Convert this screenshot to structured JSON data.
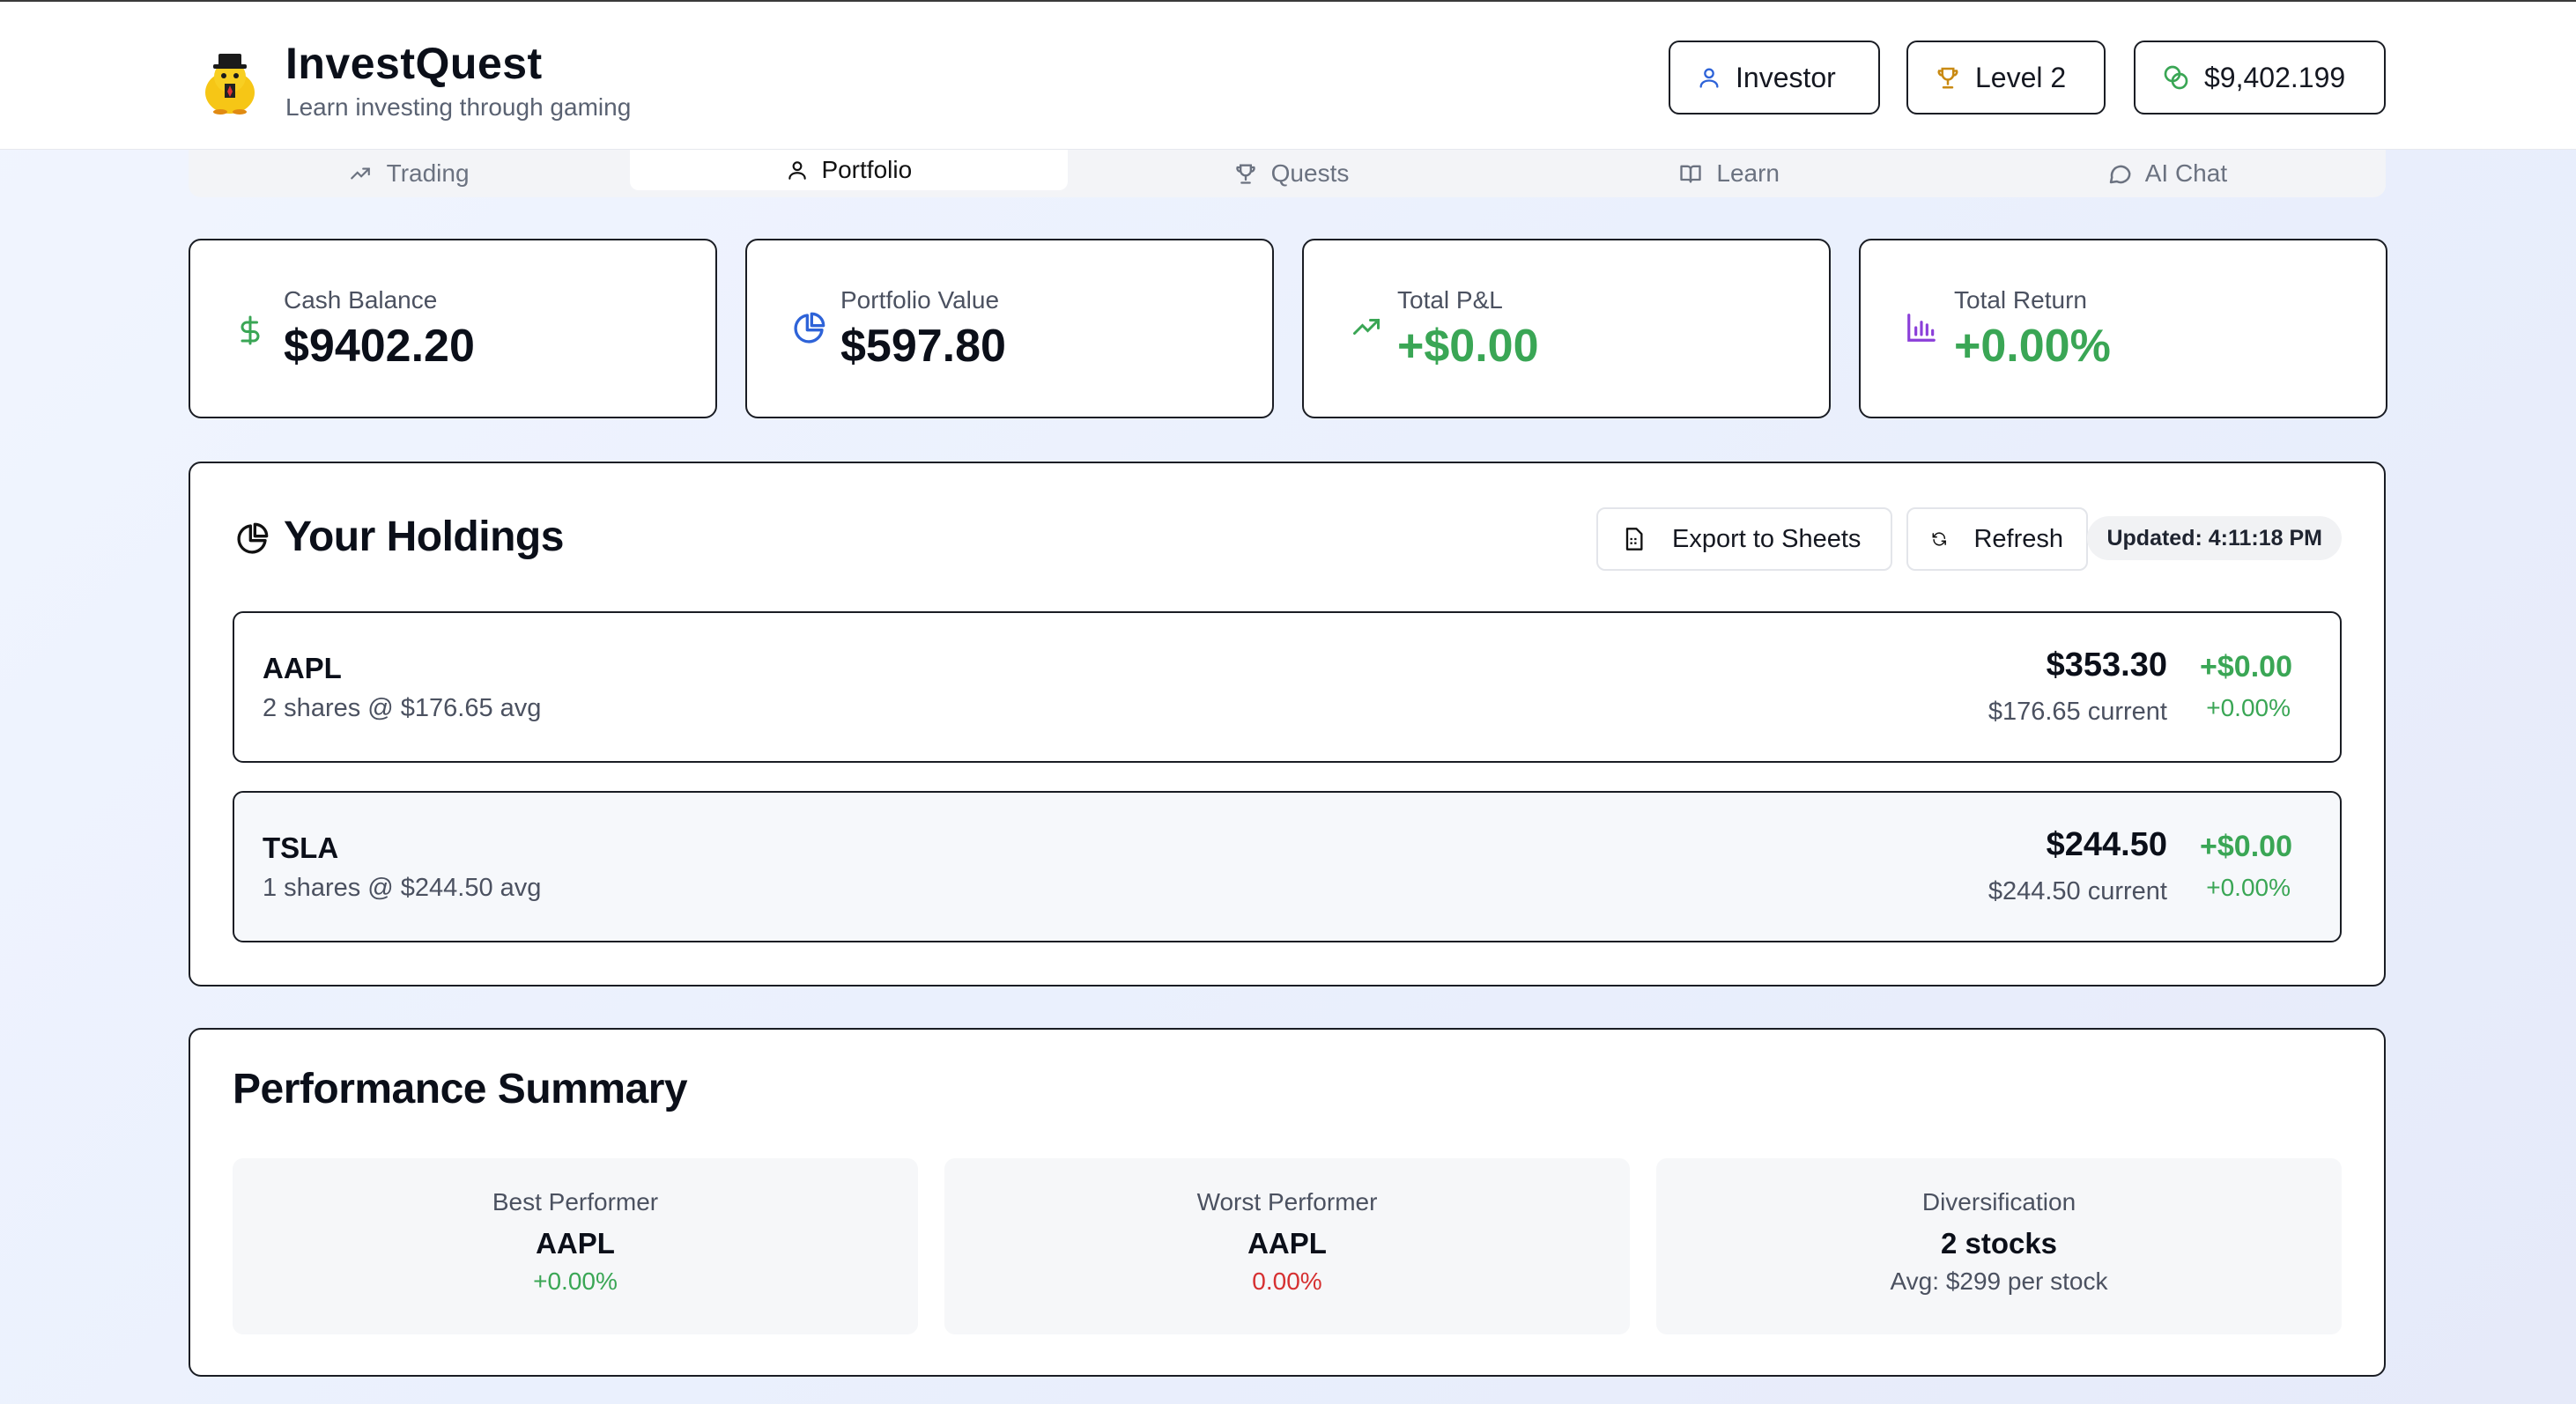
{
  "header": {
    "title": "InvestQuest",
    "subtitle": "Learn investing through gaming",
    "role_label": "Investor",
    "level_label": "Level 2",
    "balance_label": "$9,402.199"
  },
  "tabs": [
    {
      "label": "Trading",
      "icon": "trending-up-icon"
    },
    {
      "label": "Portfolio",
      "icon": "user-icon",
      "active": true
    },
    {
      "label": "Quests",
      "icon": "trophy-icon"
    },
    {
      "label": "Learn",
      "icon": "book-icon"
    },
    {
      "label": "AI Chat",
      "icon": "chat-icon"
    }
  ],
  "stats": [
    {
      "label": "Cash Balance",
      "value": "$9402.20",
      "icon": "dollar-icon"
    },
    {
      "label": "Portfolio Value",
      "value": "$597.80",
      "icon": "pie-chart-icon"
    },
    {
      "label": "Total P&L",
      "value": "+$0.00",
      "icon": "trending-up-icon"
    },
    {
      "label": "Total Return",
      "value": "+0.00%",
      "icon": "bar-chart-icon"
    }
  ],
  "holdings_panel": {
    "title": "Your Holdings",
    "export_label": "Export to Sheets",
    "refresh_label": "Refresh",
    "updated_label": "Updated: 4:11:18 PM",
    "items": [
      {
        "symbol": "AAPL",
        "detail": "2 shares @ $176.65 avg",
        "value": "$353.30",
        "current": "$176.65 current",
        "pl": "+$0.00",
        "pct": "+0.00%"
      },
      {
        "symbol": "TSLA",
        "detail": "1 shares @ $244.50 avg",
        "value": "$244.50",
        "current": "$244.50 current",
        "pl": "+$0.00",
        "pct": "+0.00%"
      }
    ]
  },
  "performance": {
    "title": "Performance Summary",
    "cards": [
      {
        "label": "Best Performer",
        "value": "AAPL",
        "sub": "+0.00%"
      },
      {
        "label": "Worst Performer",
        "value": "AAPL",
        "sub": "0.00%"
      },
      {
        "label": "Diversification",
        "value": "2 stocks",
        "sub": "Avg: $299 per stock"
      }
    ]
  },
  "colors": {
    "positive": "#3aa655",
    "negative": "#d63031",
    "accent_blue": "#2e63d8",
    "accent_purple": "#8b3fd9",
    "gold": "#c98a12"
  }
}
